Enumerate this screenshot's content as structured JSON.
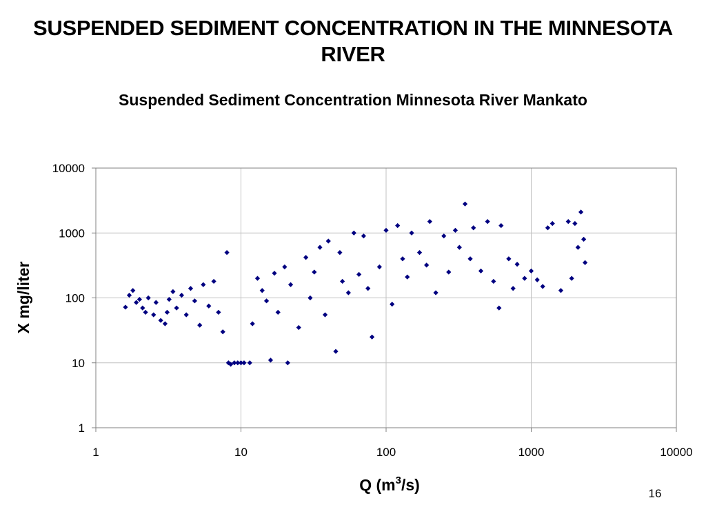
{
  "slide": {
    "title": "SUSPENDED SEDIMENT CONCENTRATION IN THE MINNESOTA RIVER",
    "page_number": "16"
  },
  "colors": {
    "marker": "#000080",
    "grid": "#c0c0c0",
    "axis": "#808080"
  },
  "chart_data": {
    "type": "scatter",
    "title": "Suspended Sediment Concentration Minnesota River Mankato",
    "xlabel": "Q (m",
    "xlabel_sup": "3",
    "xlabel_tail": "/s)",
    "ylabel": "X mg/liter",
    "x_scale": "log",
    "y_scale": "log",
    "xlim": [
      1,
      10000
    ],
    "ylim": [
      1,
      10000
    ],
    "xticks": [
      "1",
      "10",
      "100",
      "1000",
      "10000"
    ],
    "yticks": [
      "1",
      "10",
      "100",
      "1000",
      "10000"
    ],
    "grid": true,
    "legend": "none",
    "marker": "diamond",
    "series": [
      {
        "points": [
          [
            1.6,
            72
          ],
          [
            1.7,
            110
          ],
          [
            1.8,
            130
          ],
          [
            1.9,
            85
          ],
          [
            2.0,
            95
          ],
          [
            2.1,
            70
          ],
          [
            2.2,
            60
          ],
          [
            2.3,
            100
          ],
          [
            2.5,
            55
          ],
          [
            2.6,
            85
          ],
          [
            2.8,
            45
          ],
          [
            3.0,
            40
          ],
          [
            3.1,
            60
          ],
          [
            3.2,
            95
          ],
          [
            3.4,
            125
          ],
          [
            3.6,
            70
          ],
          [
            3.9,
            110
          ],
          [
            4.2,
            55
          ],
          [
            4.5,
            140
          ],
          [
            4.8,
            90
          ],
          [
            5.2,
            38
          ],
          [
            5.5,
            160
          ],
          [
            6.0,
            75
          ],
          [
            6.5,
            180
          ],
          [
            7.0,
            60
          ],
          [
            7.5,
            30
          ],
          [
            8.0,
            500
          ],
          [
            8.2,
            10
          ],
          [
            8.5,
            9.5
          ],
          [
            9.0,
            10
          ],
          [
            9.5,
            10
          ],
          [
            10.0,
            10
          ],
          [
            10.5,
            10
          ],
          [
            11.5,
            10
          ],
          [
            12.0,
            40
          ],
          [
            13.0,
            200
          ],
          [
            14.0,
            130
          ],
          [
            15.0,
            90
          ],
          [
            16.0,
            11
          ],
          [
            17.0,
            240
          ],
          [
            18.0,
            60
          ],
          [
            20.0,
            300
          ],
          [
            21.0,
            10
          ],
          [
            22.0,
            160
          ],
          [
            25.0,
            35
          ],
          [
            28.0,
            420
          ],
          [
            30.0,
            100
          ],
          [
            32.0,
            250
          ],
          [
            35.0,
            600
          ],
          [
            38.0,
            55
          ],
          [
            40.0,
            750
          ],
          [
            45.0,
            15
          ],
          [
            48.0,
            500
          ],
          [
            50.0,
            180
          ],
          [
            55.0,
            120
          ],
          [
            60.0,
            1000
          ],
          [
            65.0,
            230
          ],
          [
            70.0,
            900
          ],
          [
            75.0,
            140
          ],
          [
            80.0,
            25
          ],
          [
            90.0,
            300
          ],
          [
            100.0,
            1100
          ],
          [
            110.0,
            80
          ],
          [
            120.0,
            1300
          ],
          [
            130.0,
            400
          ],
          [
            140.0,
            210
          ],
          [
            150.0,
            1000
          ],
          [
            170.0,
            500
          ],
          [
            190.0,
            320
          ],
          [
            200.0,
            1500
          ],
          [
            220.0,
            120
          ],
          [
            250.0,
            900
          ],
          [
            270.0,
            250
          ],
          [
            300.0,
            1100
          ],
          [
            320.0,
            600
          ],
          [
            350.0,
            2800
          ],
          [
            380.0,
            400
          ],
          [
            400.0,
            1200
          ],
          [
            450.0,
            260
          ],
          [
            500.0,
            1500
          ],
          [
            550.0,
            180
          ],
          [
            600.0,
            70
          ],
          [
            620.0,
            1300
          ],
          [
            700.0,
            400
          ],
          [
            750.0,
            140
          ],
          [
            800.0,
            330
          ],
          [
            900.0,
            200
          ],
          [
            1000.0,
            260
          ],
          [
            1100.0,
            190
          ],
          [
            1200.0,
            150
          ],
          [
            1300.0,
            1200
          ],
          [
            1400.0,
            1400
          ],
          [
            1600.0,
            130
          ],
          [
            1800.0,
            1500
          ],
          [
            1900.0,
            200
          ],
          [
            2000.0,
            1400
          ],
          [
            2100.0,
            600
          ],
          [
            2200.0,
            2100
          ],
          [
            2300.0,
            800
          ],
          [
            2350.0,
            350
          ]
        ]
      }
    ]
  }
}
